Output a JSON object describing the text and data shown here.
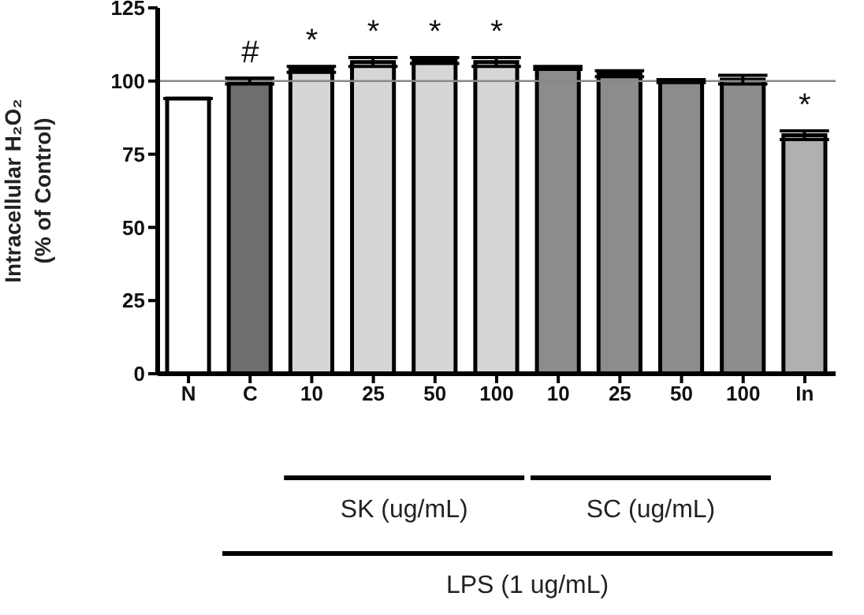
{
  "chart_data": {
    "type": "bar",
    "ylabel": "Intracellular H₂O₂ (% of Control)",
    "categories": [
      "N",
      "C",
      "10",
      "25",
      "50",
      "100",
      "10",
      "25",
      "50",
      "100",
      "In"
    ],
    "values": [
      94,
      100,
      104,
      106.5,
      107,
      106.5,
      104.5,
      102.5,
      100,
      100.5,
      81.5
    ],
    "errors": [
      null,
      1,
      1,
      1.5,
      1,
      1.5,
      0.5,
      1,
      0.5,
      1.5,
      1.5
    ],
    "colors": [
      "#ffffff",
      "#6e6e6e",
      "#d6d6d6",
      "#d6d6d6",
      "#d6d6d6",
      "#d6d6d6",
      "#8c8c8c",
      "#8c8c8c",
      "#8c8c8c",
      "#8c8c8c",
      "#b0b0b0"
    ],
    "ylim": [
      0,
      125
    ],
    "yticks": [
      0,
      25,
      50,
      75,
      100,
      125
    ],
    "grid": false,
    "ref_lines": [
      {
        "axis": "y",
        "value": 100,
        "color": "#888888"
      }
    ],
    "annotations": [
      "#",
      "*",
      "*",
      "*",
      "*",
      "*",
      "SK (ug/mL)",
      "SC (ug/mL)",
      "LPS (1 ug/mL)"
    ]
  }
}
